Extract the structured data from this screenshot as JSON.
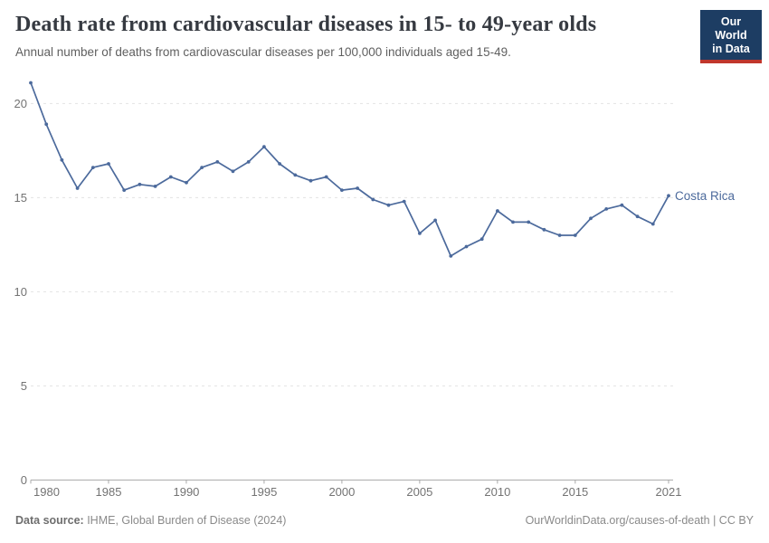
{
  "header": {
    "title": "Death rate from cardiovascular diseases in 15- to 49-year olds",
    "subtitle": "Annual number of deaths from cardiovascular diseases per 100,000 individuals aged 15-49."
  },
  "logo": {
    "line1": "Our World",
    "line2": "in Data",
    "bg_color": "#1d3d63",
    "accent_color": "#c0362c"
  },
  "chart_data": {
    "type": "line",
    "title": "Death rate from cardiovascular diseases in 15- to 49-year olds",
    "xlabel": "",
    "ylabel": "",
    "x": [
      1980,
      1981,
      1982,
      1983,
      1984,
      1985,
      1986,
      1987,
      1988,
      1989,
      1990,
      1991,
      1992,
      1993,
      1994,
      1995,
      1996,
      1997,
      1998,
      1999,
      2000,
      2001,
      2002,
      2003,
      2004,
      2005,
      2006,
      2007,
      2008,
      2009,
      2010,
      2011,
      2012,
      2013,
      2014,
      2015,
      2016,
      2017,
      2018,
      2019,
      2020,
      2021
    ],
    "series": [
      {
        "name": "Costa Rica",
        "color": "#4c6a9c",
        "values": [
          21.1,
          18.9,
          17.0,
          15.5,
          16.6,
          16.8,
          15.4,
          15.7,
          15.6,
          16.1,
          15.8,
          16.6,
          16.9,
          16.4,
          16.9,
          17.7,
          16.8,
          16.2,
          15.9,
          16.1,
          15.4,
          15.5,
          14.9,
          14.6,
          14.8,
          13.1,
          13.8,
          11.9,
          12.4,
          12.8,
          14.3,
          13.7,
          13.7,
          13.3,
          13.0,
          13.0,
          13.9,
          14.4,
          14.6,
          14.0,
          13.6,
          15.1
        ]
      }
    ],
    "xticks": [
      1980,
      1985,
      1990,
      1995,
      2000,
      2005,
      2010,
      2015,
      2021
    ],
    "yticks": [
      0,
      5,
      10,
      15,
      20
    ],
    "xlim": [
      1980,
      2021
    ],
    "ylim": [
      0,
      21.6
    ],
    "grid": "dashed horizontal",
    "legend_position": "end-of-line label",
    "colors": {
      "grid": "#e3e3e3",
      "axis": "#a8a8a8",
      "tick_label": "#737373",
      "line": "#4c6a9c"
    }
  },
  "footer": {
    "source_label": "Data source:",
    "source_text": " IHME, Global Burden of Disease (2024)",
    "right_text": "OurWorldinData.org/causes-of-death | CC BY"
  }
}
